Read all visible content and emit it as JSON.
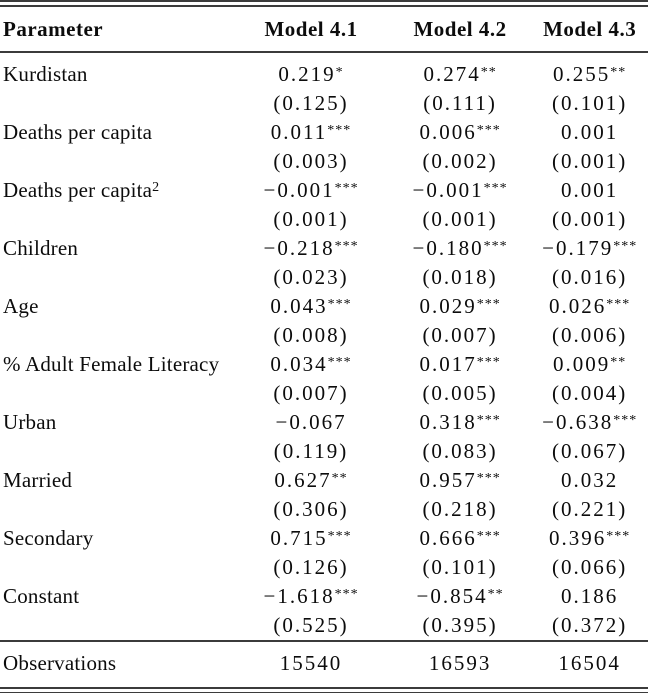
{
  "table": {
    "columns": [
      "Parameter",
      "Model 4.1",
      "Model 4.2",
      "Model 4.3"
    ],
    "rows": [
      {
        "parameter": "Kurdistan",
        "sup": "",
        "cells": [
          {
            "coef": "0.219",
            "stars": "*",
            "se": "(0.125)"
          },
          {
            "coef": "0.274",
            "stars": "**",
            "se": "(0.111)"
          },
          {
            "coef": "0.255",
            "stars": "**",
            "se": "(0.101)"
          }
        ]
      },
      {
        "parameter": "Deaths per capita",
        "sup": "",
        "cells": [
          {
            "coef": "0.011",
            "stars": "***",
            "se": "(0.003)"
          },
          {
            "coef": "0.006",
            "stars": "***",
            "se": "(0.002)"
          },
          {
            "coef": "0.001",
            "stars": "",
            "se": "(0.001)"
          }
        ]
      },
      {
        "parameter": "Deaths per capita",
        "sup": "2",
        "cells": [
          {
            "coef": "−0.001",
            "stars": "***",
            "se": "(0.001)"
          },
          {
            "coef": "−0.001",
            "stars": "***",
            "se": "(0.001)"
          },
          {
            "coef": "0.001",
            "stars": "",
            "se": "(0.001)"
          }
        ]
      },
      {
        "parameter": "Children",
        "sup": "",
        "cells": [
          {
            "coef": "−0.218",
            "stars": "***",
            "se": "(0.023)"
          },
          {
            "coef": "−0.180",
            "stars": "***",
            "se": "(0.018)"
          },
          {
            "coef": "−0.179",
            "stars": "***",
            "se": "(0.016)"
          }
        ]
      },
      {
        "parameter": "Age",
        "sup": "",
        "cells": [
          {
            "coef": "0.043",
            "stars": "***",
            "se": "(0.008)"
          },
          {
            "coef": "0.029",
            "stars": "***",
            "se": "(0.007)"
          },
          {
            "coef": "0.026",
            "stars": "***",
            "se": "(0.006)"
          }
        ]
      },
      {
        "parameter": "% Adult Female Literacy",
        "sup": "",
        "cells": [
          {
            "coef": "0.034",
            "stars": "***",
            "se": "(0.007)"
          },
          {
            "coef": "0.017",
            "stars": "***",
            "se": "(0.005)"
          },
          {
            "coef": "0.009",
            "stars": "**",
            "se": "(0.004)"
          }
        ]
      },
      {
        "parameter": "Urban",
        "sup": "",
        "cells": [
          {
            "coef": "−0.067",
            "stars": "",
            "se": "(0.119)"
          },
          {
            "coef": "0.318",
            "stars": "***",
            "se": "(0.083)"
          },
          {
            "coef": "−0.638",
            "stars": "***",
            "se": "(0.067)"
          }
        ]
      },
      {
        "parameter": "Married",
        "sup": "",
        "cells": [
          {
            "coef": "0.627",
            "stars": "**",
            "se": "(0.306)"
          },
          {
            "coef": "0.957",
            "stars": "***",
            "se": "(0.218)"
          },
          {
            "coef": "0.032",
            "stars": "",
            "se": "(0.221)"
          }
        ]
      },
      {
        "parameter": "Secondary",
        "sup": "",
        "cells": [
          {
            "coef": "0.715",
            "stars": "***",
            "se": "(0.126)"
          },
          {
            "coef": "0.666",
            "stars": "***",
            "se": "(0.101)"
          },
          {
            "coef": "0.396",
            "stars": "***",
            "se": "(0.066)"
          }
        ]
      },
      {
        "parameter": "Constant",
        "sup": "",
        "cells": [
          {
            "coef": "−1.618",
            "stars": "***",
            "se": "(0.525)"
          },
          {
            "coef": "−0.854",
            "stars": "**",
            "se": "(0.395)"
          },
          {
            "coef": "0.186",
            "stars": "",
            "se": "(0.372)"
          }
        ]
      }
    ],
    "footer": {
      "label": "Observations",
      "values": [
        "15540",
        "16593",
        "16504"
      ]
    },
    "rule_color": "#3b3b3b"
  }
}
